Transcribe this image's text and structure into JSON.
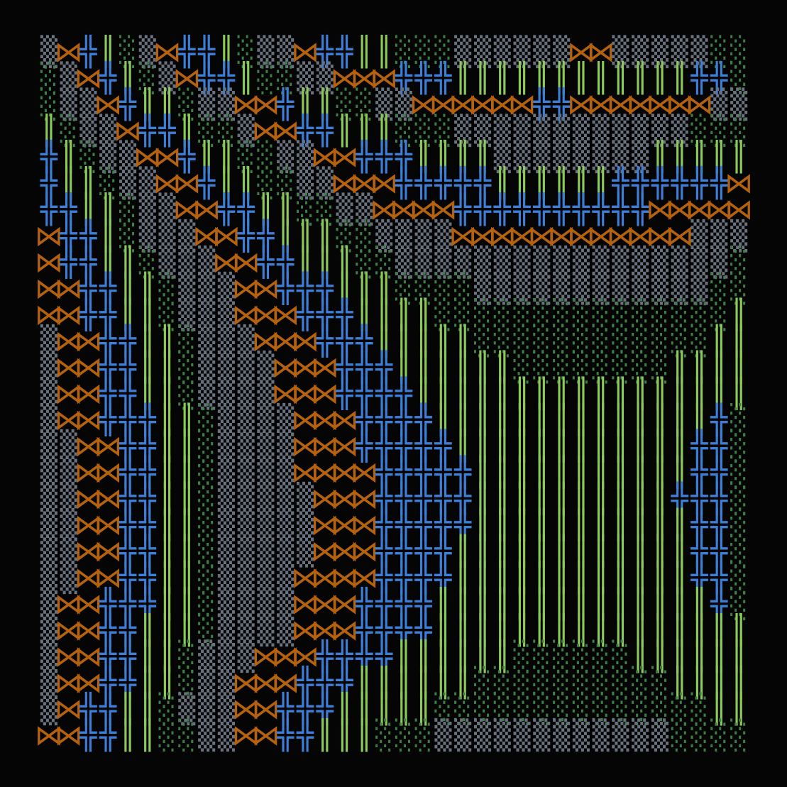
{
  "art": {
    "rows": [
      "▒⋈╬║░▒⋈╬╬║░▒▒⋈╬╬║║░░░▒▒▒▒▒▒⋈⋈▒▒▒▒▒░░",
      "░▒⋈╬║░▒⋈╬╬║░░▒▒⋈⋈⋈╬╬╬║║║║║║║║║║║║╬╬░",
      "░▒▒⋈╬║║░▒▒⋈⋈╬║║░░▒▒⋈⋈⋈⋈⋈⋈╬╬⋈⋈⋈⋈⋈⋈⋈▒▒",
      "║░▒▒⋈╬╬║░░▒⋈⋈╬╬║║║░░░▒▒▒▒▒▒▒▒▒▒▒▒░░░",
      "╬║░▒▒⋈⋈╬║║░░▒▒⋈⋈╬╬╬║║║║▒▒▒▒▒▒▒▒║║║║║",
      "╬║║░▒▒⋈⋈╬║║░░▒▒⋈⋈⋈╬╬╬╬╬║║║║║║╬╬╬╬╬╬⋈",
      "╬╬║║░▒▒⋈⋈╬╬║║░░▒▒⋈⋈⋈⋈╬╬╬╬╬╬╬╬╬╬⋈⋈⋈⋈⋈",
      "⋈╬╬║░▒▒▒⋈⋈╬╬║║║░░▒▒▒▒⋈⋈⋈⋈⋈⋈⋈⋈⋈⋈⋈⋈▒▒▒",
      "⋈╬╬║║░▒▒▒⋈⋈╬╬║║║░░▒▒▒▒▒▒▒▒▒▒▒▒▒▒▒▒▒░",
      "⋈⋈╬╬║║░▒▒▒⋈⋈╬╬╬║║║░░░░▒▒▒▒▒▒▒▒▒▒▒▒░░",
      "⋈⋈╬╬║║░▒▒▒⋈⋈⋈╬╬╬║║║║░░░░░░░░░░░░░░░║",
      "▒⋈⋈╬╬║║░▒▒▒⋈⋈⋈╬╬╬║║║║║░░░░░░░░░░░░║║",
      "▒⋈⋈╬╬║║░▒▒▒▒⋈⋈⋈╬╬╬║║║║║║░░░░░░░░║║║║",
      "▒⋈⋈╬╬║║░▒▒▒▒⋈⋈⋈╬╬╬╬║║║║║║║║║║║║║║║║║",
      "▒⋈⋈╬╬╬║║░▒▒▒▒⋈⋈⋈╬╬╬╬║║║║║║║║║║║║║║╬░",
      "▒▒⋈⋈╬╬║║░▒▒▒▒⋈⋈⋈╬╬╬╬╬║║║║║║║║║║║║╬╬░",
      "▒▒⋈⋈╬╬║║░▒▒▒▒⋈⋈⋈⋈╬╬╬╬╬║║║║║║║║║║║╬╬░",
      "▒▒⋈⋈╬╬║║░▒▒▒▒▒⋈⋈⋈╬╬╬╬╬║║║║║║║║║║╬╬╬░",
      "▒▒⋈⋈╬╬║║░▒▒▒▒▒⋈⋈⋈╬╬╬╬╬║║║║║║║║║║║╬╬░",
      "▒▒⋈⋈╬╬║║░▒▒▒▒▒⋈⋈⋈╬╬╬╬║║║║║║║║║║║║╬╬░",
      "▒▒⋈⋈╬╬║║░▒▒▒▒⋈⋈⋈⋈╬╬╬╬║║║║║║║║║║║║╬╬░",
      "▒⋈⋈╬╬╬║║░▒▒▒▒⋈⋈⋈╬╬╬╬║║║║║║║║║║║║║║╬░",
      "▒⋈⋈╬╬║║║░▒▒▒▒⋈⋈⋈╬╬╬╬║║║║║║║║║║║║║║║║",
      "▒⋈⋈╬╬║║░▒▒▒⋈⋈⋈╬╬╬╬║║║║║║░░░░░░║║║║║║",
      "▒⋈⋈╬╬║║░▒▒⋈⋈⋈╬╬╬║║║║║║░░░░░░░░░░║║║║",
      "▒⋈╬╬║║░▒▒▒⋈⋈╬╬╬║║║║║░░░░░░░░░░░░░░║║",
      "⋈⋈╬╬║║░░▒▒⋈⋈╬╬║║║░░░▒▒▒▒▒▒▒▒▒▒▒▒░░░░"
    ]
  }
}
